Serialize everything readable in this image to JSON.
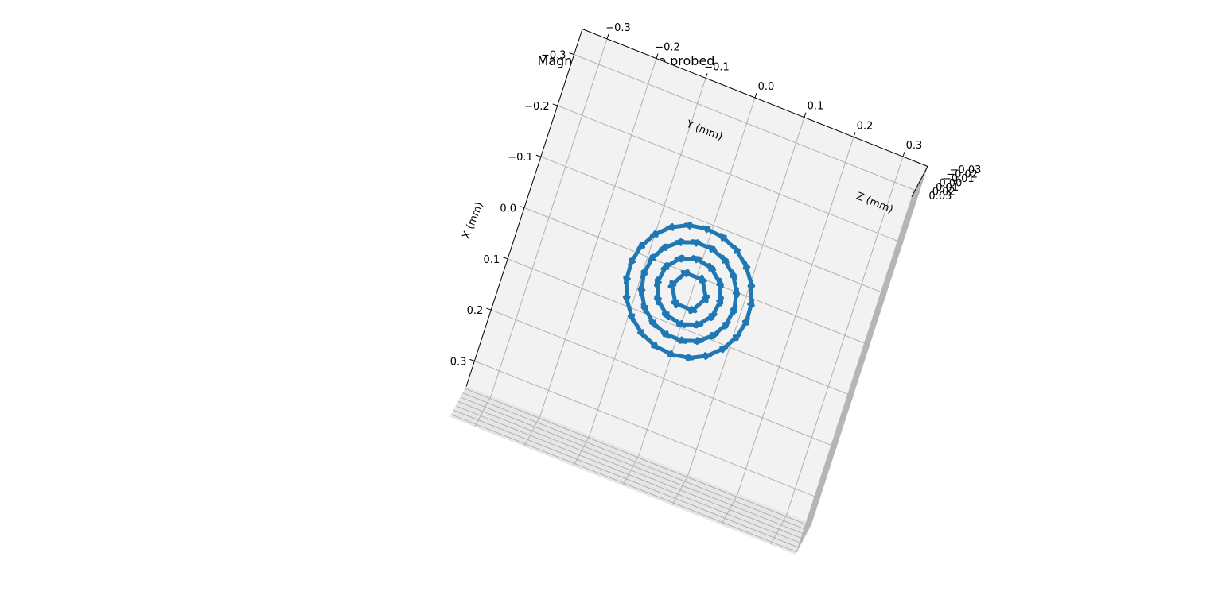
{
  "chart_data": {
    "type": "quiver3d",
    "title": "Magnetic Field to be probed",
    "xlabel": "X (mm)",
    "ylabel": "Y (mm)",
    "zlabel": "Z (mm)",
    "x_ticks": [
      "−0.3",
      "−0.2",
      "−0.1",
      "0.0",
      "0.1",
      "0.2",
      "0.3"
    ],
    "y_ticks": [
      "−0.3",
      "−0.2",
      "−0.1",
      "0.0",
      "0.1",
      "0.2",
      "0.3"
    ],
    "z_ticks": [
      "0.03",
      "0.02",
      "0.01",
      "0.00",
      "−0.01",
      "−0.02",
      "−0.03"
    ],
    "xlim": [
      -0.35,
      0.35
    ],
    "ylim": [
      -0.35,
      0.35
    ],
    "zlim": [
      -0.035,
      0.035
    ],
    "grid": true,
    "arrow_color": "#1f77b4",
    "field": {
      "description": "azimuthal (circulating) field",
      "rings": [
        {
          "radius": 0.03,
          "count": 6
        },
        {
          "radius": 0.06,
          "count": 12
        },
        {
          "radius": 0.09,
          "count": 18
        },
        {
          "radius": 0.12,
          "count": 22
        }
      ],
      "arrow_length": 0.045
    }
  }
}
